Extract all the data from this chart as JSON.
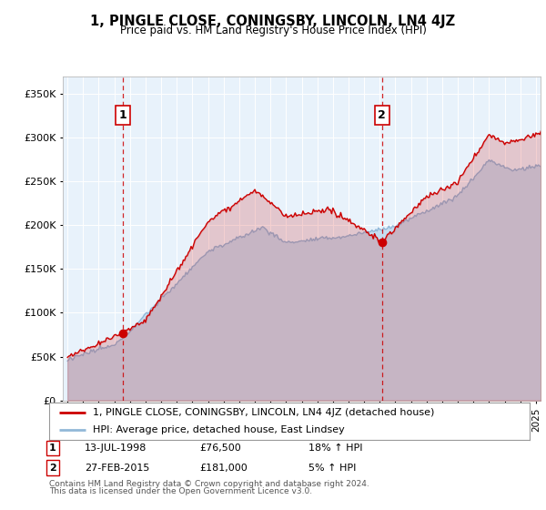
{
  "title": "1, PINGLE CLOSE, CONINGSBY, LINCOLN, LN4 4JZ",
  "subtitle": "Price paid vs. HM Land Registry's House Price Index (HPI)",
  "legend_line1": "1, PINGLE CLOSE, CONINGSBY, LINCOLN, LN4 4JZ (detached house)",
  "legend_line2": "HPI: Average price, detached house, East Lindsey",
  "footer1": "Contains HM Land Registry data © Crown copyright and database right 2024.",
  "footer2": "This data is licensed under the Open Government Licence v3.0.",
  "annotation1": {
    "label": "1",
    "date": "13-JUL-1998",
    "price": "£76,500",
    "hpi": "18% ↑ HPI"
  },
  "annotation2": {
    "label": "2",
    "date": "27-FEB-2015",
    "price": "£181,000",
    "hpi": "5% ↑ HPI"
  },
  "sale1_x": 1998.54,
  "sale1_y": 76500,
  "sale2_x": 2015.15,
  "sale2_y": 181000,
  "ylim": [
    0,
    370000
  ],
  "xlim": [
    1994.7,
    2025.3
  ],
  "hpi_color": "#92b8d8",
  "hpi_fill_color": "#c5ddf0",
  "price_color": "#cc0000",
  "background_color": "#ffffff",
  "plot_bg_color": "#e8f2fb",
  "grid_color": "#ffffff",
  "ann_line_color": "#cc0000"
}
